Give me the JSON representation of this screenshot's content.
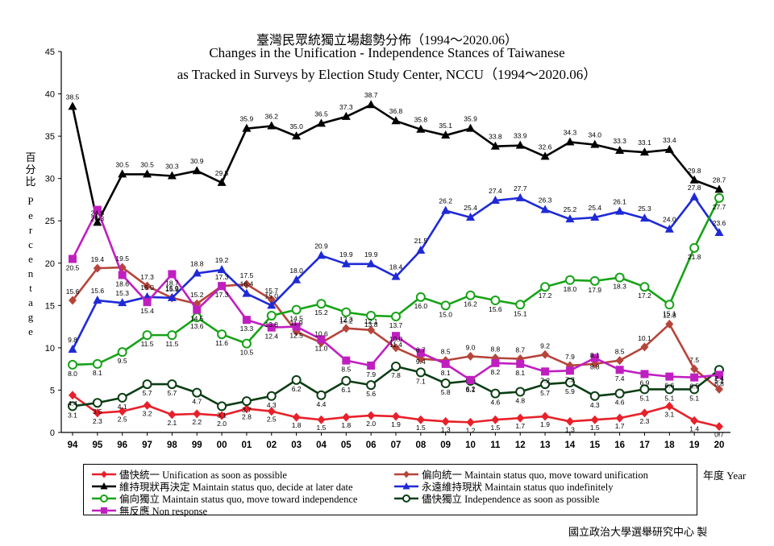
{
  "title_zh": "臺灣民眾統獨立場趨勢分佈（1994～2020.06）",
  "title_en_1": "Changes in the Unification - Independence Stances of Taiwanese",
  "title_en_2": "as Tracked in Surveys by Election Study Center, NCCU（1994～2020.06）",
  "ylabel": "百分比 Percentage",
  "xunit": "年度 Year",
  "credit": "國立政治大學選舉研究中心 製",
  "chart_data": {
    "type": "line",
    "x": [
      "94",
      "95",
      "96",
      "97",
      "98",
      "99",
      "00",
      "01",
      "02",
      "03",
      "04",
      "05",
      "06",
      "07",
      "08",
      "09",
      "10",
      "11",
      "12",
      "13",
      "14",
      "15",
      "16",
      "17",
      "18",
      "19",
      "20"
    ],
    "ylim": [
      0,
      45
    ],
    "yticks": [
      0,
      5,
      10,
      15,
      20,
      25,
      30,
      35,
      40,
      45
    ],
    "legend_position": "bottom",
    "series": [
      {
        "name": "儘快統一 Unification as soon as possible",
        "color": "#e8202a",
        "marker": "diamond",
        "values": [
          4.4,
          2.3,
          2.5,
          3.2,
          2.1,
          2.2,
          2.0,
          2.8,
          2.5,
          1.8,
          1.5,
          1.8,
          2.0,
          1.9,
          1.5,
          1.3,
          1.2,
          1.5,
          1.7,
          1.9,
          1.3,
          1.5,
          1.7,
          2.3,
          3.1,
          1.4,
          0.7
        ]
      },
      {
        "name": "偏向統一 Maintain status quo, move toward unification",
        "color": "#b5453b",
        "marker": "diamond",
        "values": [
          15.6,
          19.4,
          19.5,
          17.3,
          15.9,
          15.2,
          17.3,
          17.5,
          15.7,
          11.9,
          10.6,
          12.3,
          12.1,
          10.0,
          8.7,
          8.5,
          9.0,
          8.8,
          8.7,
          9.2,
          7.9,
          8.1,
          8.5,
          10.1,
          12.8,
          7.5,
          5.1
        ]
      },
      {
        "name": "維持現狀再決定 Maintain status quo, decide at later date",
        "color": "#000000",
        "marker": "triangle",
        "values": [
          38.5,
          24.8,
          30.5,
          30.5,
          30.3,
          30.9,
          29.5,
          35.9,
          36.2,
          35.0,
          36.5,
          37.3,
          38.7,
          36.8,
          35.8,
          35.1,
          35.9,
          33.8,
          33.9,
          32.6,
          34.3,
          34.0,
          33.3,
          33.1,
          33.4,
          29.8,
          28.7
        ]
      },
      {
        "name": "永遠維持現狀 Maintain status quo indefinitely",
        "color": "#1f2ad6",
        "marker": "triangle",
        "values": [
          9.8,
          15.6,
          15.3,
          16.0,
          15.9,
          18.8,
          19.2,
          16.4,
          15.0,
          18.0,
          20.9,
          19.9,
          19.9,
          18.4,
          21.5,
          26.2,
          25.4,
          27.4,
          27.7,
          26.3,
          25.2,
          25.4,
          26.1,
          25.3,
          24.0,
          27.8,
          23.6
        ]
      },
      {
        "name": "偏向獨立 Maintain status quo, move toward independence",
        "color": "#17a317",
        "marker": "circle",
        "values": [
          8.0,
          8.1,
          9.5,
          11.5,
          11.5,
          13.6,
          11.6,
          10.5,
          13.8,
          14.5,
          15.2,
          14.2,
          13.8,
          13.7,
          16.0,
          15.0,
          16.2,
          15.6,
          15.1,
          17.2,
          18.0,
          17.9,
          18.3,
          17.2,
          15.1,
          21.8,
          27.7
        ]
      },
      {
        "name": "儘快獨立 Independence as soon as possible",
        "color": "#0b3d14",
        "marker": "circle",
        "values": [
          3.1,
          3.5,
          4.1,
          5.7,
          5.7,
          4.7,
          3.1,
          3.7,
          4.3,
          6.2,
          4.4,
          6.1,
          5.6,
          7.8,
          7.1,
          5.8,
          6.1,
          4.6,
          4.8,
          5.7,
          5.9,
          4.3,
          4.6,
          5.1,
          5.1,
          5.1,
          7.4
        ]
      },
      {
        "name": "無反應 Non response",
        "color": "#c01fc0",
        "marker": "square",
        "values": [
          20.5,
          26.3,
          18.6,
          15.4,
          18.7,
          14.5,
          17.3,
          13.3,
          12.4,
          12.5,
          11.0,
          8.5,
          7.9,
          11.4,
          9.4,
          8.1,
          6.2,
          8.2,
          8.1,
          7.2,
          7.3,
          8.8,
          7.4,
          6.9,
          6.6,
          6.5,
          6.8
        ]
      }
    ]
  }
}
